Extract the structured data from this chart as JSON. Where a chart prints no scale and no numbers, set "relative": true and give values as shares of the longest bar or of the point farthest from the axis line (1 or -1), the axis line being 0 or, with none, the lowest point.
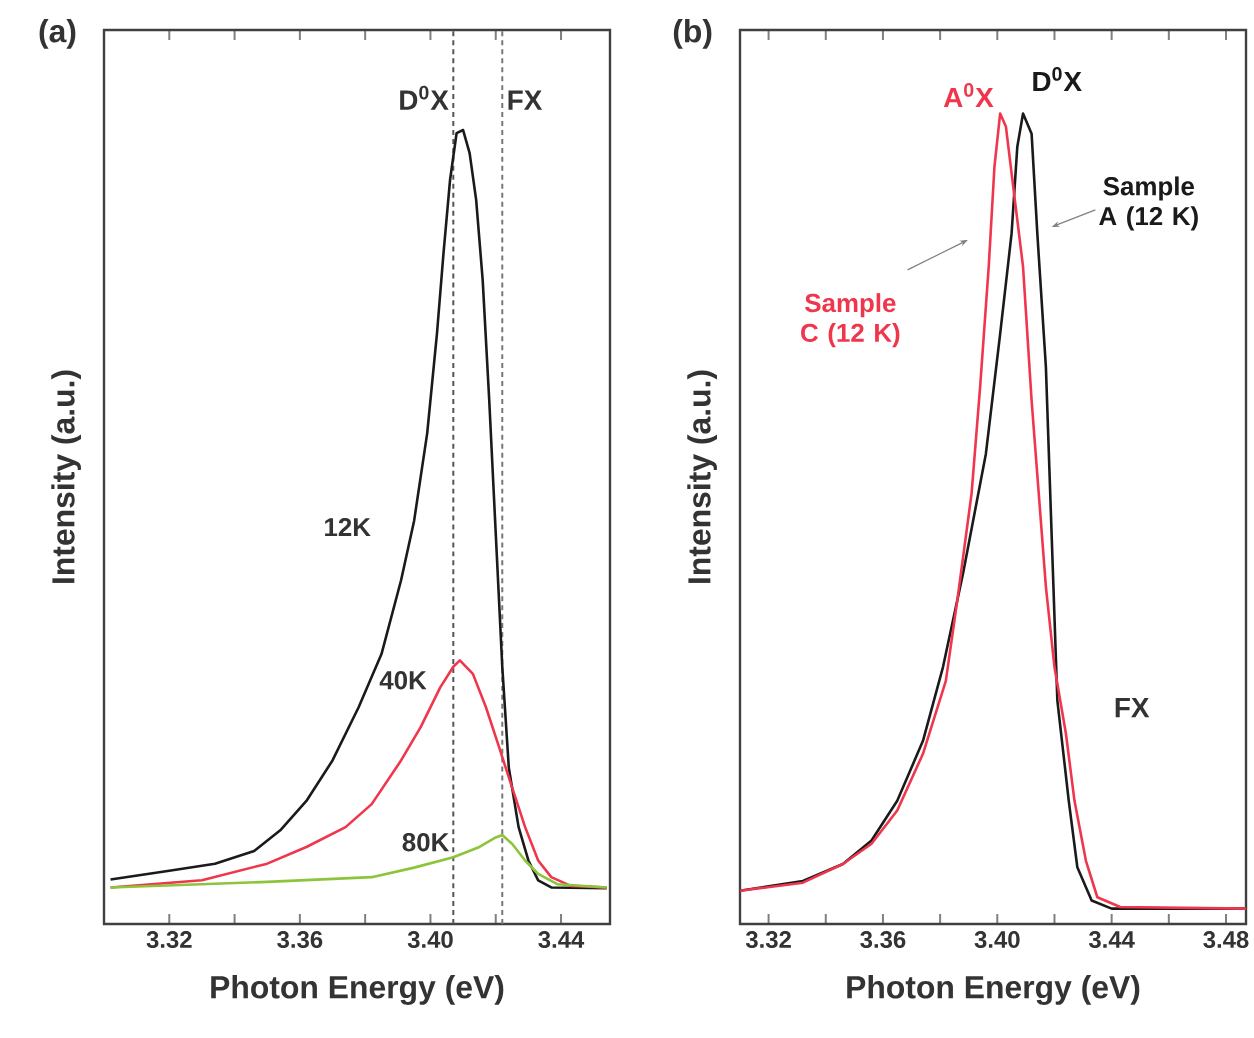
{
  "chart_data": [
    {
      "type": "line",
      "title": "(a)",
      "xlabel": "Photon Energy (eV)",
      "ylabel": "Intensity (a.u.)",
      "relative": true,
      "xlim": [
        3.3,
        3.455
      ],
      "xticks": [
        3.32,
        {
          "value": 3.34,
          "label": null
        },
        3.36,
        {
          "value": 3.38,
          "label": null
        },
        {
          "value": 3.4,
          "label": "3.40"
        },
        {
          "value": 3.42,
          "label": null
        },
        3.44
      ],
      "series": [
        {
          "name": "12K",
          "color": "#1a1a1a",
          "x": [
            3.302,
            3.32,
            3.334,
            3.346,
            3.354,
            3.362,
            3.37,
            3.378,
            3.385,
            3.391,
            3.395,
            3.399,
            3.402,
            3.404,
            3.406,
            3.408,
            3.41,
            3.412,
            3.414,
            3.416,
            3.418,
            3.42,
            3.422,
            3.424,
            3.427,
            3.43,
            3.433,
            3.437,
            3.454
          ],
          "values": [
            0.056,
            0.067,
            0.076,
            0.092,
            0.118,
            0.155,
            0.206,
            0.273,
            0.34,
            0.433,
            0.508,
            0.618,
            0.744,
            0.845,
            0.937,
            0.996,
            1.0,
            0.971,
            0.912,
            0.811,
            0.66,
            0.492,
            0.324,
            0.197,
            0.122,
            0.08,
            0.055,
            0.046,
            0.045
          ]
        },
        {
          "name": "40K",
          "color": "#f0364c",
          "x": [
            3.302,
            3.33,
            3.35,
            3.362,
            3.374,
            3.382,
            3.391,
            3.397,
            3.403,
            3.407,
            3.409,
            3.413,
            3.417,
            3.421,
            3.425,
            3.429,
            3.433,
            3.437,
            3.443,
            3.454
          ],
          "values": [
            0.046,
            0.055,
            0.076,
            0.097,
            0.122,
            0.151,
            0.206,
            0.248,
            0.298,
            0.324,
            0.332,
            0.315,
            0.273,
            0.223,
            0.172,
            0.122,
            0.08,
            0.059,
            0.048,
            0.046
          ]
        },
        {
          "name": "80K",
          "color": "#8cc43c",
          "x": [
            3.302,
            3.35,
            3.382,
            3.395,
            3.407,
            3.415,
            3.42,
            3.422,
            3.425,
            3.429,
            3.433,
            3.439,
            3.454
          ],
          "values": [
            0.046,
            0.053,
            0.059,
            0.071,
            0.084,
            0.097,
            0.109,
            0.112,
            0.101,
            0.08,
            0.063,
            0.05,
            0.046
          ]
        }
      ],
      "ref_lines": [
        {
          "axis": "x",
          "value": 3.407,
          "label": "D$^{0}$X",
          "color": "#555555",
          "line_style": "dashed"
        },
        {
          "axis": "x",
          "value": 3.422,
          "label": "FX",
          "color": "#777777",
          "line_style": "dashed"
        }
      ]
    },
    {
      "type": "line",
      "title": "(b)",
      "xlabel": "Photon Energy (eV)",
      "ylabel": "Intensity (a.u.)",
      "relative": true,
      "xlim": [
        3.31,
        3.487
      ],
      "xticks": [
        3.32,
        {
          "value": 3.34,
          "label": null
        },
        3.36,
        {
          "value": 3.38,
          "label": null
        },
        {
          "value": 3.4,
          "label": "3.40"
        },
        {
          "value": 3.42,
          "label": null
        },
        3.44,
        {
          "value": 3.46,
          "label": null
        },
        3.48
      ],
      "series": [
        {
          "name": "Sample A (12 K)",
          "color": "#1a1a1a",
          "x": [
            3.31,
            3.332,
            3.346,
            3.356,
            3.365,
            3.374,
            3.381,
            3.388,
            3.396,
            3.401,
            3.405,
            3.407,
            3.409,
            3.412,
            3.414,
            3.417,
            3.419,
            3.421,
            3.425,
            3.428,
            3.433,
            3.44,
            3.487
          ],
          "values": [
            0.041,
            0.053,
            0.074,
            0.103,
            0.152,
            0.226,
            0.317,
            0.432,
            0.58,
            0.728,
            0.852,
            0.959,
            1.0,
            0.975,
            0.852,
            0.687,
            0.481,
            0.276,
            0.152,
            0.07,
            0.029,
            0.019,
            0.019
          ]
        },
        {
          "name": "Sample C (12 K)",
          "color": "#f0364c",
          "x": [
            3.31,
            3.332,
            3.346,
            3.356,
            3.365,
            3.374,
            3.382,
            3.386,
            3.391,
            3.394,
            3.397,
            3.399,
            3.401,
            3.403,
            3.405,
            3.409,
            3.412,
            3.417,
            3.42,
            3.424,
            3.427,
            3.431,
            3.435,
            3.443,
            3.487
          ],
          "values": [
            0.041,
            0.051,
            0.074,
            0.099,
            0.14,
            0.21,
            0.3,
            0.399,
            0.531,
            0.663,
            0.811,
            0.934,
            1.0,
            0.984,
            0.926,
            0.811,
            0.646,
            0.416,
            0.317,
            0.235,
            0.152,
            0.078,
            0.033,
            0.021,
            0.019
          ]
        }
      ],
      "annotations": [
        {
          "text": "D$^{0}$X",
          "x": 3.409,
          "y": 1.0
        },
        {
          "text": "A$^{0}$X",
          "x": 3.401,
          "y": 1.0
        },
        "FX"
      ]
    }
  ]
}
